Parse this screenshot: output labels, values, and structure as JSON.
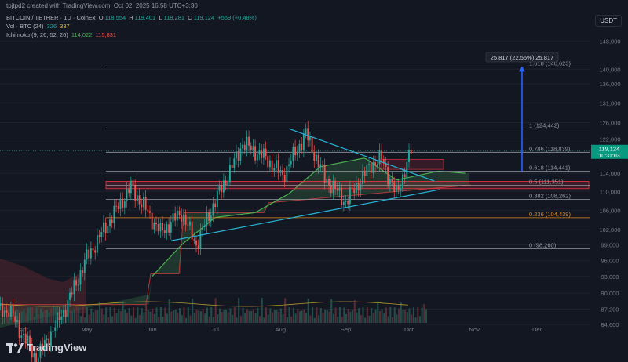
{
  "attribution": "tpjtpd2 created with TradingView.com, Oct 02, 2025 16:58 UTC+3:30",
  "header": {
    "symbol": "BITCOIN / TETHER · 1D · CoinEx",
    "ohlc": [
      {
        "k": "O",
        "v": "118,554"
      },
      {
        "k": "H",
        "v": "119,401"
      },
      {
        "k": "L",
        "v": "118,281"
      },
      {
        "k": "C",
        "v": "119,124"
      }
    ],
    "change": "+569 (+0.48%)",
    "vol_label": "Vol · BTC (24)",
    "vol_v1": "326",
    "vol_v2": "337",
    "ichimoku_label": "Ichimoku (9, 26, 52, 26)",
    "ichimoku_v1": "114,022",
    "ichimoku_v2": "115,831"
  },
  "currency_button": "USDT",
  "logo_text": "TradingView",
  "colors": {
    "background": "#131722",
    "up": "#26a69a",
    "down": "#ef5350",
    "grid_text": "#787b86",
    "trendline": "#2ab4d8",
    "ichimoku_lead": "#4caf50",
    "cloud_green": "#2e5e3e",
    "cloud_red": "#5a2830",
    "fib_0236": "#e08a1e",
    "measure": "#2962ff",
    "price_tag": "#089981",
    "zone": "#f23645"
  },
  "chart_data": {
    "type": "candlestick",
    "title": "BITCOIN / TETHER · 1D · CoinEx",
    "x_tick_labels": [
      "Apr",
      "May",
      "Jun",
      "Jul",
      "Aug",
      "Sep",
      "Oct",
      "Nov",
      "Dec"
    ],
    "y_tick_labels": [
      "148,000",
      "140,000",
      "136,000",
      "131,000",
      "126,000",
      "122,000",
      "114,000",
      "110,000",
      "106,000",
      "102,000",
      "99,000",
      "96,000",
      "93,000",
      "90,000",
      "87,200",
      "84,600"
    ],
    "y_scale": "log",
    "last_price": {
      "value": "119,124",
      "countdown": "10:31:03"
    },
    "fibonacci": [
      {
        "level": "0",
        "price": 98260,
        "label": "0 (98,260)"
      },
      {
        "level": "0.236",
        "price": 104439,
        "label": "0.236 (104,439)"
      },
      {
        "level": "0.382",
        "price": 108262,
        "label": "0.382 (108,262)"
      },
      {
        "level": "0.5",
        "price": 111351,
        "label": "0.5 (111,351)"
      },
      {
        "level": "0.618",
        "price": 114441,
        "label": "0.618 (114,441)"
      },
      {
        "level": "0.786",
        "price": 118839,
        "label": "0.786 (118,839)"
      },
      {
        "level": "1",
        "price": 124442,
        "label": "1 (124,442)"
      },
      {
        "level": "1.618",
        "price": 140623,
        "label": "1.618 (140,623)"
      }
    ],
    "measure_label": "25,817 (22.55%) 25,817",
    "series_close_points": [
      {
        "date": "2025-03-25",
        "close": 87000
      },
      {
        "date": "2025-04-07",
        "close": 79000
      },
      {
        "date": "2025-04-21",
        "close": 87500
      },
      {
        "date": "2025-05-01",
        "close": 96500
      },
      {
        "date": "2025-05-12",
        "close": 104000
      },
      {
        "date": "2025-05-22",
        "close": 111000
      },
      {
        "date": "2025-06-05",
        "close": 101500
      },
      {
        "date": "2025-06-15",
        "close": 105500
      },
      {
        "date": "2025-06-22",
        "close": 99000
      },
      {
        "date": "2025-06-30",
        "close": 107000
      },
      {
        "date": "2025-07-10",
        "close": 116500
      },
      {
        "date": "2025-07-14",
        "close": 121000
      },
      {
        "date": "2025-07-25",
        "close": 117500
      },
      {
        "date": "2025-08-02",
        "close": 113500
      },
      {
        "date": "2025-08-13",
        "close": 123300
      },
      {
        "date": "2025-08-22",
        "close": 113000
      },
      {
        "date": "2025-09-01",
        "close": 107800
      },
      {
        "date": "2025-09-13",
        "close": 116000
      },
      {
        "date": "2025-09-18",
        "close": 117300
      },
      {
        "date": "2025-09-25",
        "close": 109200
      },
      {
        "date": "2025-10-02",
        "close": 119124
      }
    ],
    "ichimoku_lead_points": [
      {
        "date": "2025-06-01",
        "value": 93000
      },
      {
        "date": "2025-06-15",
        "value": 99000
      },
      {
        "date": "2025-07-01",
        "value": 104500
      },
      {
        "date": "2025-07-20",
        "value": 105500
      },
      {
        "date": "2025-08-05",
        "value": 109500
      },
      {
        "date": "2025-08-20",
        "value": 115500
      },
      {
        "date": "2025-09-10",
        "value": 117500
      },
      {
        "date": "2025-09-25",
        "value": 112500
      },
      {
        "date": "2025-10-15",
        "value": 114500
      },
      {
        "date": "2025-10-28",
        "value": 114000
      }
    ]
  }
}
